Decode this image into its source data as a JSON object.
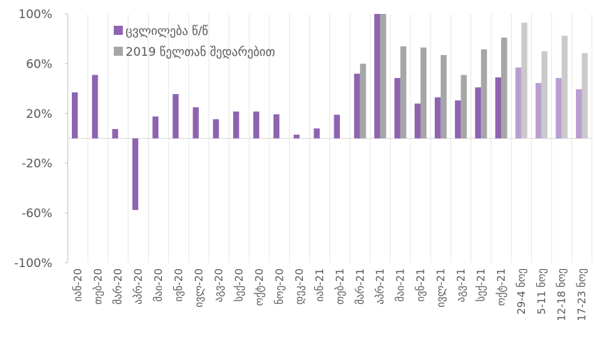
{
  "chart_data": {
    "type": "bar",
    "categories": [
      "იან-20",
      "თებ-20",
      "მარ-20",
      "აპრ-20",
      "მაი-20",
      "ივნ-20",
      "ივლ-20",
      "აგვ-20",
      "სექ-20",
      "ოქტ-20",
      "ნოე-20",
      "დეკ-20",
      "იან-21",
      "თებ-21",
      "მარ-21",
      "აპრ-21",
      "მაი-21",
      "ივნ-21",
      "ივლ-21",
      "აგვ-21",
      "სექ-21",
      "ოქტ-21",
      "29-4 ნოე",
      "5-11 ნოე",
      "12-18 ნოე",
      "17-23 ნოე"
    ],
    "series": [
      {
        "name": "ცვლილება წ/წ",
        "color": "#8e63b0",
        "colors": [
          "#8e63b0",
          "#8e63b0",
          "#8e63b0",
          "#8e63b0",
          "#8e63b0",
          "#8e63b0",
          "#8e63b0",
          "#8e63b0",
          "#8e63b0",
          "#8e63b0",
          "#8e63b0",
          "#8e63b0",
          "#8e63b0",
          "#8e63b0",
          "#8e63b0",
          "#8e63b0",
          "#8e63b0",
          "#8e63b0",
          "#8e63b0",
          "#8e63b0",
          "#8e63b0",
          "#8e63b0",
          "#b89ed2",
          "#b89ed2",
          "#b89ed2",
          "#b89ed2"
        ],
        "values": [
          37,
          51,
          7.5,
          -57.5,
          17.6,
          35.6,
          25,
          15.4,
          21.6,
          21.6,
          19.3,
          3,
          8,
          19,
          52,
          100,
          48.5,
          28,
          33,
          30.5,
          41,
          49,
          57,
          44.5,
          48.5,
          39.5
        ]
      },
      {
        "name": "2019 წელთან შედარებით",
        "color": "#a6a6a6",
        "colors": [
          "#a6a6a6",
          "#a6a6a6",
          "#a6a6a6",
          "#a6a6a6",
          "#a6a6a6",
          "#a6a6a6",
          "#a6a6a6",
          "#a6a6a6",
          "#a6a6a6",
          "#a6a6a6",
          "#a6a6a6",
          "#a6a6a6",
          "#a6a6a6",
          "#a6a6a6",
          "#a6a6a6",
          "#a6a6a6",
          "#a6a6a6",
          "#a6a6a6",
          "#a6a6a6",
          "#a6a6a6",
          "#a6a6a6",
          "#a6a6a6",
          "#cacaca",
          "#cacaca",
          "#cacaca",
          "#cacaca"
        ],
        "values": [
          null,
          null,
          null,
          null,
          null,
          null,
          null,
          null,
          null,
          null,
          null,
          null,
          null,
          null,
          60,
          100,
          74,
          73,
          67,
          51,
          71.5,
          81,
          93,
          70,
          82.5,
          68.5
        ]
      }
    ],
    "ylim": [
      -100,
      100
    ],
    "yticks": [
      {
        "value": -100,
        "label": "-100%"
      },
      {
        "value": -60,
        "label": "-60%"
      },
      {
        "value": -20,
        "label": "-20%"
      },
      {
        "value": 20,
        "label": "20%"
      },
      {
        "value": 60,
        "label": "60%"
      },
      {
        "value": 100,
        "label": "100%"
      }
    ],
    "legend": "top-left"
  }
}
